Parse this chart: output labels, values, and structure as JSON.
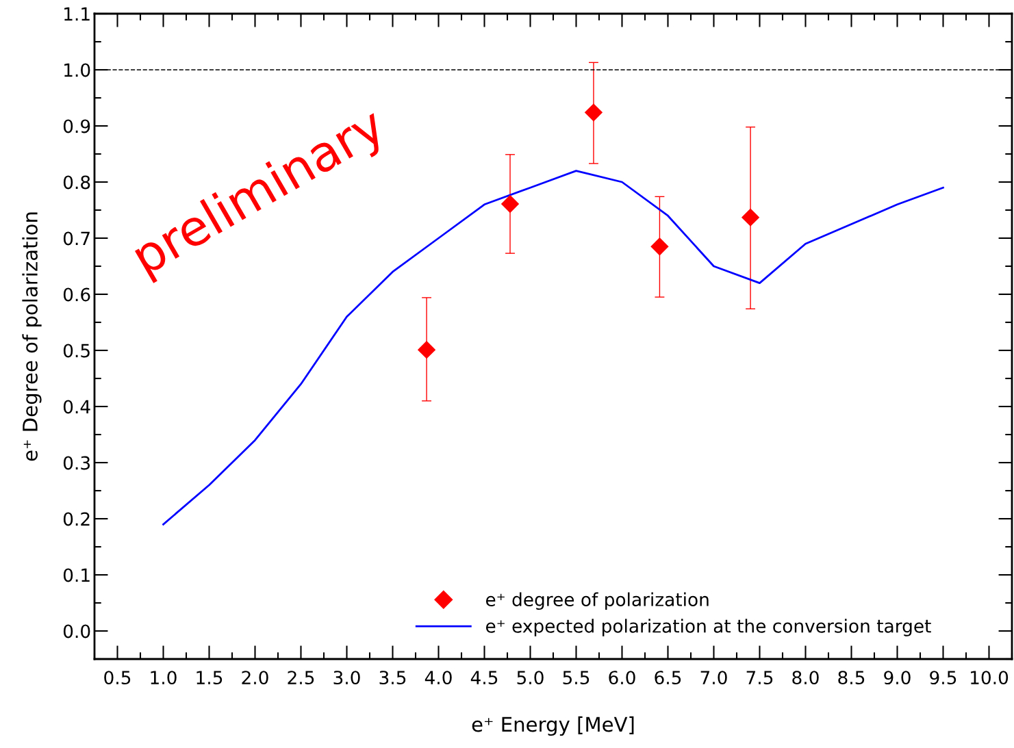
{
  "chart_data": {
    "type": "scatter",
    "xlabel": "e⁺ Energy [MeV]",
    "ylabel": "e⁺ Degree of polarization",
    "annotations": [
      "preliminary"
    ],
    "xlim": [
      0.25,
      10.25
    ],
    "ylim": [
      -0.05,
      1.1
    ],
    "xticks": [
      0.5,
      {
        "value": 1,
        "label": "1.0"
      },
      1.5,
      {
        "value": 2,
        "label": "2.0"
      },
      2.5,
      {
        "value": 3,
        "label": "3.0"
      },
      3.5,
      {
        "value": 4,
        "label": "4.0"
      },
      4.5,
      {
        "value": 5,
        "label": "5.0"
      },
      5.5,
      {
        "value": 6,
        "label": "6.0"
      },
      6.5,
      {
        "value": 7,
        "label": "7.0"
      },
      7.5,
      {
        "value": 8,
        "label": "8.0"
      },
      8.5,
      {
        "value": 9,
        "label": "9.0"
      },
      9.5,
      {
        "value": 10,
        "label": "10.0"
      }
    ],
    "yticks": [
      {
        "value": 0,
        "label": "0.0"
      },
      0.1,
      0.2,
      0.3,
      0.4,
      0.5,
      0.6,
      0.7,
      0.8,
      0.9,
      {
        "value": 1,
        "label": "1.0"
      },
      1.1
    ],
    "ref_lines": [
      {
        "axis": "y",
        "value": 1.0,
        "color": "#000000",
        "line_style": "dashed"
      }
    ],
    "legend": "lower right",
    "grid": false,
    "series": [
      {
        "name": "e⁺ degree of polarization",
        "color": "#ff0000",
        "marker": "diamond",
        "x": [
          3.87,
          4.78,
          5.69,
          6.41,
          7.4
        ],
        "values": [
          0.501,
          0.761,
          0.924,
          0.685,
          0.737
        ],
        "errors": [
          [
            0.41,
            0.594
          ],
          [
            0.673,
            0.849
          ],
          [
            0.833,
            1.013
          ],
          [
            0.595,
            0.774
          ],
          [
            0.574,
            0.898
          ]
        ]
      },
      {
        "name": "e⁺ expected polarization at the conversion target",
        "type": "line",
        "color": "#0000ff",
        "marker": "none",
        "line_style": "solid",
        "x": [
          1.0,
          1.5,
          2.0,
          2.5,
          3.0,
          3.5,
          4.0,
          4.5,
          5.0,
          5.5,
          6.0,
          6.5,
          7.0,
          7.5,
          8.0,
          8.5,
          9.0,
          9.5
        ],
        "values": [
          0.19,
          0.26,
          0.34,
          0.44,
          0.56,
          0.64,
          0.7,
          0.76,
          0.79,
          0.82,
          0.8,
          0.74,
          0.65,
          0.62,
          0.69,
          0.725,
          0.76,
          0.79
        ]
      }
    ]
  }
}
